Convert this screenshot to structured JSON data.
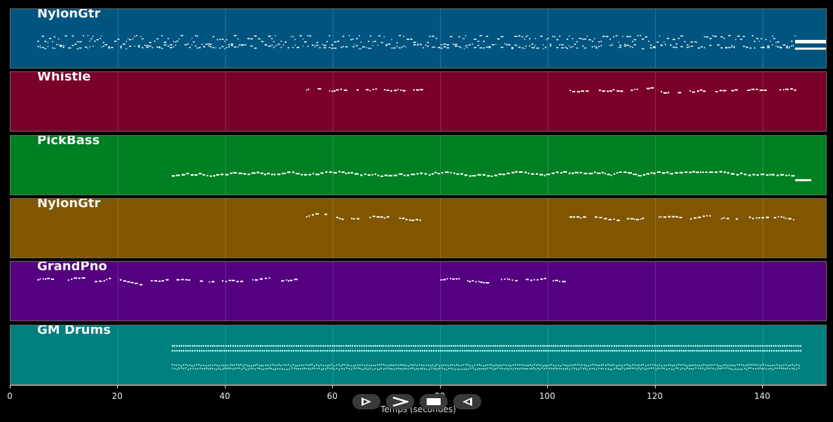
{
  "tracks": [
    {
      "name": "NylonGtr",
      "color": "#005580",
      "pattern": "dense",
      "start": 5,
      "end": 152,
      "tail": true
    },
    {
      "name": "Whistle",
      "color": "#7a002a",
      "pattern": "phrases",
      "segments": [
        [
          55,
          78
        ],
        [
          104,
          146
        ]
      ]
    },
    {
      "name": "PickBass",
      "color": "#007f23",
      "pattern": "bass",
      "start": 30,
      "end": 149,
      "tail": true
    },
    {
      "name": "NylonGtr",
      "color": "#805700",
      "pattern": "phrases",
      "segments": [
        [
          55,
          78
        ],
        [
          104,
          146
        ]
      ]
    },
    {
      "name": "GrandPno",
      "color": "#550080",
      "pattern": "phrases",
      "segments": [
        [
          5,
          53
        ],
        [
          80,
          104
        ]
      ]
    },
    {
      "name": "GM Drums",
      "color": "#007f7f",
      "pattern": "drums",
      "start": 30,
      "end": 147
    }
  ],
  "axis": {
    "label": "Temps (secondes)",
    "min": 0,
    "max": 152,
    "ticks": [
      "0",
      "20",
      "40",
      "60",
      "80",
      "100",
      "120",
      "140"
    ],
    "tick_values": [
      0,
      20,
      40,
      60,
      80,
      100,
      120,
      140
    ]
  },
  "controls": [
    {
      "name": "play-button",
      "icon": "play-icon"
    },
    {
      "name": "forward-button",
      "icon": "chevron-right-icon"
    },
    {
      "name": "stop-button",
      "icon": "stop-icon"
    },
    {
      "name": "rewind-button",
      "icon": "play-reverse-icon"
    }
  ]
}
